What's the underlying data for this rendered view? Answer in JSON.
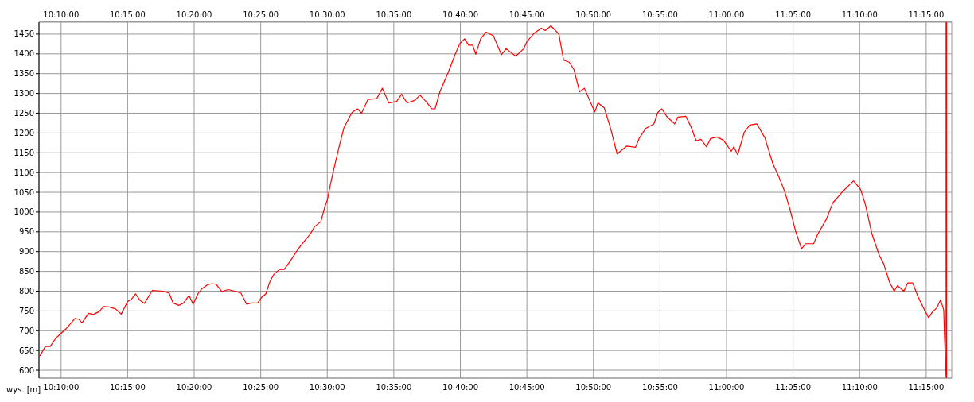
{
  "chart_data": {
    "type": "line",
    "ylabel": "wys. [m]",
    "x": [
      10.14,
      10.147,
      10.153,
      10.16,
      10.166,
      10.173,
      10.184,
      10.189,
      10.193,
      10.201,
      10.207,
      10.214,
      10.22,
      10.227,
      10.235,
      10.242,
      10.25,
      10.255,
      10.26,
      10.265,
      10.271,
      10.281,
      10.294,
      10.302,
      10.307,
      10.314,
      10.32,
      10.327,
      10.332,
      10.338,
      10.343,
      10.35,
      10.356,
      10.361,
      10.368,
      10.376,
      10.386,
      10.392,
      10.399,
      10.405,
      10.413,
      10.418,
      10.423,
      10.428,
      10.433,
      10.44,
      10.446,
      10.454,
      10.463,
      10.471,
      10.479,
      10.484,
      10.492,
      10.497,
      10.5,
      10.503,
      10.507,
      10.515,
      10.521,
      10.531,
      10.538,
      10.543,
      10.551,
      10.562,
      10.569,
      10.577,
      10.587,
      10.593,
      10.6,
      10.61,
      10.616,
      10.624,
      10.631,
      10.635,
      10.641,
      10.651,
      10.66,
      10.666,
      10.672,
      10.677,
      10.682,
      10.686,
      10.692,
      10.699,
      10.708,
      10.718,
      10.724,
      10.736,
      10.746,
      10.75,
      10.759,
      10.768,
      10.773,
      10.78,
      10.79,
      10.796,
      10.803,
      10.809,
      10.816,
      10.822,
      10.835,
      10.839,
      10.847,
      10.855,
      10.863,
      10.875,
      10.886,
      10.891,
      10.899,
      10.909,
      10.914,
      10.919,
      10.925,
      10.935,
      10.939,
      10.949,
      10.955,
      10.962,
      10.968,
      10.975,
      10.98,
      10.988,
      10.996,
      11.006,
      11.009,
      11.014,
      11.022,
      11.029,
      11.038,
      11.048,
      11.058,
      11.065,
      11.073,
      11.079,
      11.087,
      11.094,
      11.099,
      11.109,
      11.114,
      11.125,
      11.133,
      11.145,
      11.159,
      11.168,
      11.174,
      11.182,
      11.191,
      11.197,
      11.204,
      11.21,
      11.214,
      11.222,
      11.227,
      11.233,
      11.24,
      11.248,
      11.253,
      11.258,
      11.263,
      11.268,
      11.272,
      11.273,
      11.275
    ],
    "series": [
      {
        "color": "#ff0000",
        "values": [
          636,
          660,
          660,
          681,
          692,
          705,
          731,
          729,
          720,
          744,
          741,
          748,
          761,
          760,
          755,
          742,
          774,
          780,
          793,
          778,
          769,
          802,
          800,
          795,
          770,
          764,
          770,
          789,
          767,
          793,
          806,
          816,
          819,
          817,
          799,
          804,
          799,
          795,
          767,
          770,
          770,
          785,
          793,
          823,
          842,
          855,
          855,
          877,
          905,
          926,
          945,
          963,
          976,
          1014,
          1029,
          1061,
          1098,
          1167,
          1214,
          1252,
          1261,
          1250,
          1285,
          1287,
          1313,
          1276,
          1280,
          1298,
          1276,
          1283,
          1296,
          1279,
          1261,
          1261,
          1304,
          1351,
          1398,
          1426,
          1438,
          1422,
          1422,
          1399,
          1438,
          1455,
          1446,
          1398,
          1413,
          1394,
          1413,
          1431,
          1452,
          1465,
          1459,
          1471,
          1450,
          1384,
          1379,
          1360,
          1304,
          1313,
          1253,
          1276,
          1263,
          1210,
          1147,
          1167,
          1164,
          1188,
          1212,
          1223,
          1252,
          1261,
          1242,
          1223,
          1240,
          1242,
          1218,
          1180,
          1184,
          1165,
          1186,
          1190,
          1182,
          1154,
          1165,
          1145,
          1201,
          1220,
          1223,
          1188,
          1122,
          1092,
          1051,
          1010,
          948,
          907,
          920,
          920,
          943,
          982,
          1023,
          1051,
          1079,
          1057,
          1018,
          945,
          892,
          868,
          823,
          800,
          814,
          800,
          821,
          821,
          785,
          752,
          733,
          748,
          757,
          778,
          752,
          681,
          587
        ]
      }
    ],
    "xlim": [
      10.139,
      11.282
    ],
    "xticks": [
      {
        "value": 10.1667,
        "label": "10:10:00"
      },
      {
        "value": 10.25,
        "label": "10:15:00"
      },
      {
        "value": 10.3333,
        "label": "10:20:00"
      },
      {
        "value": 10.4167,
        "label": "10:25:00"
      },
      {
        "value": 10.5,
        "label": "10:30:00"
      },
      {
        "value": 10.5833,
        "label": "10:35:00"
      },
      {
        "value": 10.6667,
        "label": "10:40:00"
      },
      {
        "value": 10.75,
        "label": "10:45:00"
      },
      {
        "value": 10.8333,
        "label": "10:50:00"
      },
      {
        "value": 10.9167,
        "label": "10:55:00"
      },
      {
        "value": 11,
        "label": "11:00:00"
      },
      {
        "value": 11.0833,
        "label": "11:05:00"
      },
      {
        "value": 11.1667,
        "label": "11:10:00"
      },
      {
        "value": 11.25,
        "label": "11:15:00"
      }
    ],
    "x2lim": [
      10.139,
      11.282
    ],
    "x2ticks": [
      {
        "value": 10.1667,
        "label": "10:10:00"
      },
      {
        "value": 10.25,
        "label": "10:15:00"
      },
      {
        "value": 10.3333,
        "label": "10:20:00"
      },
      {
        "value": 10.4167,
        "label": "10:25:00"
      },
      {
        "value": 10.5,
        "label": "10:30:00"
      },
      {
        "value": 10.5833,
        "label": "10:35:00"
      },
      {
        "value": 10.6667,
        "label": "10:40:00"
      },
      {
        "value": 10.75,
        "label": "10:45:00"
      },
      {
        "value": 10.8333,
        "label": "10:50:00"
      },
      {
        "value": 10.9167,
        "label": "10:55:00"
      },
      {
        "value": 11,
        "label": "11:00:00"
      },
      {
        "value": 11.0833,
        "label": "11:05:00"
      },
      {
        "value": 11.1667,
        "label": "11:10:00"
      },
      {
        "value": 11.25,
        "label": "11:15:00"
      }
    ],
    "ylim": [
      580,
      1480
    ],
    "yticks": [
      600,
      650,
      700,
      750,
      800,
      850,
      900,
      950,
      1000,
      1050,
      1100,
      1150,
      1200,
      1250,
      1300,
      1350,
      1400,
      1450
    ],
    "ref_lines": [
      {
        "axis": "x",
        "value": 11.2753,
        "color": "#ff0000"
      }
    ],
    "grid": true,
    "legend": false,
    "marker": "none",
    "line_style": "solid"
  }
}
